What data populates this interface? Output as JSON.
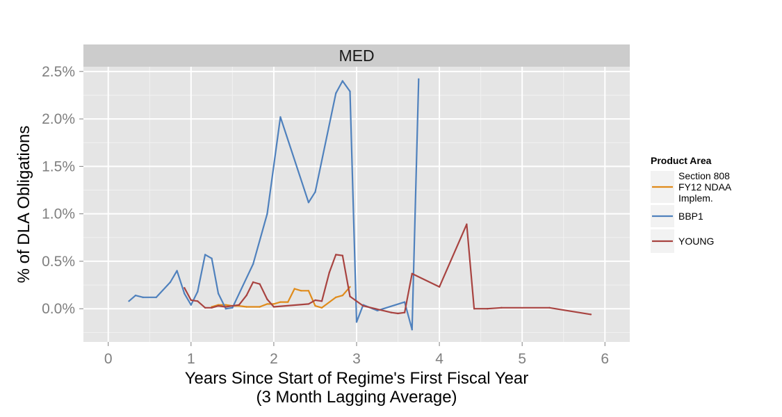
{
  "chart_data": {
    "type": "line",
    "facet_title": "MED",
    "xlabel_line1": "Years Since Start of Regime's First Fiscal Year",
    "xlabel_line2": "(3 Month Lagging Average)",
    "ylabel": "% of DLA Obligations",
    "xlim": [
      -0.3,
      6.3
    ],
    "ylim": [
      -0.35,
      2.55
    ],
    "x_ticks": [
      0,
      1,
      2,
      3,
      4,
      5,
      6
    ],
    "x_tick_labels": [
      "0",
      "1",
      "2",
      "3",
      "4",
      "5",
      "6"
    ],
    "y_ticks": [
      0.0,
      0.5,
      1.0,
      1.5,
      2.0,
      2.5
    ],
    "y_tick_labels": [
      "0.0%",
      "0.5%",
      "1.0%",
      "1.5%",
      "2.0%",
      "2.5%"
    ],
    "grid": true,
    "legend": {
      "title": "Product Area",
      "position": "right",
      "entries": [
        {
          "label_lines": [
            "Section 808",
            "FY12 NDAA",
            "Implem."
          ],
          "color": "#e08b1a"
        },
        {
          "label_lines": [
            "BBP1"
          ],
          "color": "#4f81bd"
        },
        {
          "label_lines": [
            "YOUNG"
          ],
          "color": "#a84340"
        }
      ]
    },
    "series": [
      {
        "name": "Section 808 FY12 NDAA Implem.",
        "color": "#e08b1a",
        "x": [
          1.25,
          1.33,
          1.42,
          1.5,
          1.58,
          1.67,
          1.83,
          1.92,
          2.0,
          2.08,
          2.17,
          2.25,
          2.33,
          2.42,
          2.5,
          2.58,
          2.75,
          2.83,
          2.92
        ],
        "y": [
          0.02,
          0.04,
          0.04,
          0.03,
          0.03,
          0.02,
          0.02,
          0.05,
          0.05,
          0.07,
          0.07,
          0.21,
          0.19,
          0.19,
          0.03,
          0.01,
          0.12,
          0.14,
          0.23
        ]
      },
      {
        "name": "BBP1",
        "color": "#4f81bd",
        "x": [
          0.25,
          0.33,
          0.42,
          0.58,
          0.75,
          0.83,
          0.92,
          1.0,
          1.08,
          1.17,
          1.25,
          1.33,
          1.42,
          1.5,
          1.75,
          1.92,
          2.08,
          2.42,
          2.5,
          2.75,
          2.83,
          2.92,
          3.0,
          3.08,
          3.25,
          3.58,
          3.67,
          3.75
        ],
        "y": [
          0.08,
          0.14,
          0.12,
          0.12,
          0.28,
          0.4,
          0.16,
          0.04,
          0.18,
          0.57,
          0.53,
          0.16,
          0.0,
          0.01,
          0.47,
          1.0,
          2.02,
          1.12,
          1.23,
          2.27,
          2.4,
          2.29,
          -0.14,
          0.04,
          -0.02,
          0.07,
          -0.22,
          2.42
        ]
      },
      {
        "name": "YOUNG",
        "color": "#a84340",
        "x": [
          0.92,
          1.0,
          1.08,
          1.17,
          1.25,
          1.33,
          1.42,
          1.58,
          1.67,
          1.75,
          1.83,
          1.92,
          2.0,
          2.42,
          2.5,
          2.58,
          2.67,
          2.75,
          2.83,
          2.92,
          3.08,
          3.42,
          3.5,
          3.58,
          3.67,
          4.0,
          4.33,
          4.42,
          4.58,
          4.75,
          5.33,
          5.83
        ],
        "y": [
          0.22,
          0.09,
          0.08,
          0.01,
          0.01,
          0.03,
          0.02,
          0.04,
          0.14,
          0.28,
          0.26,
          0.1,
          0.02,
          0.05,
          0.09,
          0.08,
          0.38,
          0.57,
          0.56,
          0.13,
          0.03,
          -0.04,
          -0.05,
          -0.04,
          0.37,
          0.23,
          0.89,
          0.0,
          0.0,
          0.01,
          0.01,
          -0.06
        ]
      }
    ]
  }
}
